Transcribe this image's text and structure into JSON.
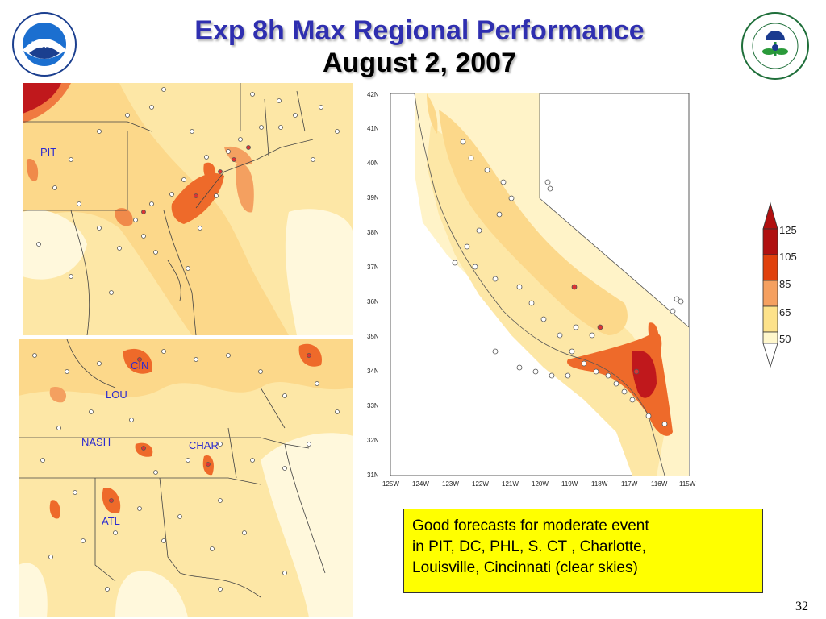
{
  "slide": {
    "title": "Exp 8h Max Regional Performance",
    "subtitle": "August 2, 2007",
    "page_number": "32"
  },
  "logos": {
    "left": {
      "icon": "noaa-logo",
      "text": "NOAA",
      "ring_text": "NATIONAL OCEANIC AND ATMOSPHERIC ADMINISTRATION · U.S. DEPARTMENT OF COMMERCE"
    },
    "right": {
      "icon": "epa-logo",
      "ring_text": "UNITED STATES ENVIRONMENTAL PROTECTION AGENCY"
    }
  },
  "maps": {
    "northeast": {
      "labels": [
        {
          "name": "PIT"
        }
      ]
    },
    "southeast": {
      "labels": [
        {
          "name": "CIN"
        },
        {
          "name": "LOU"
        },
        {
          "name": "NASH"
        },
        {
          "name": "CHAR"
        },
        {
          "name": "ATL"
        }
      ]
    },
    "california": {
      "lat_ticks": [
        "42N",
        "41N",
        "40N",
        "39N",
        "38N",
        "37N",
        "36N",
        "35N",
        "34N",
        "33N",
        "32N",
        "31N"
      ],
      "lon_ticks": [
        "125W",
        "124W",
        "123W",
        "122W",
        "121W",
        "120W",
        "119W",
        "118W",
        "117W",
        "116W",
        "115W"
      ]
    }
  },
  "legend": {
    "values": [
      "125",
      "105",
      "85",
      "65",
      "50"
    ],
    "colors": [
      "#b01010",
      "#e0400c",
      "#f5a060",
      "#fde28a",
      "#fff7cc"
    ]
  },
  "note": {
    "lines": [
      "Good forecasts for moderate event",
      "in PIT, DC, PHL, S. CT , Charlotte,",
      "Louisville, Cincinnati (clear skies)"
    ]
  }
}
